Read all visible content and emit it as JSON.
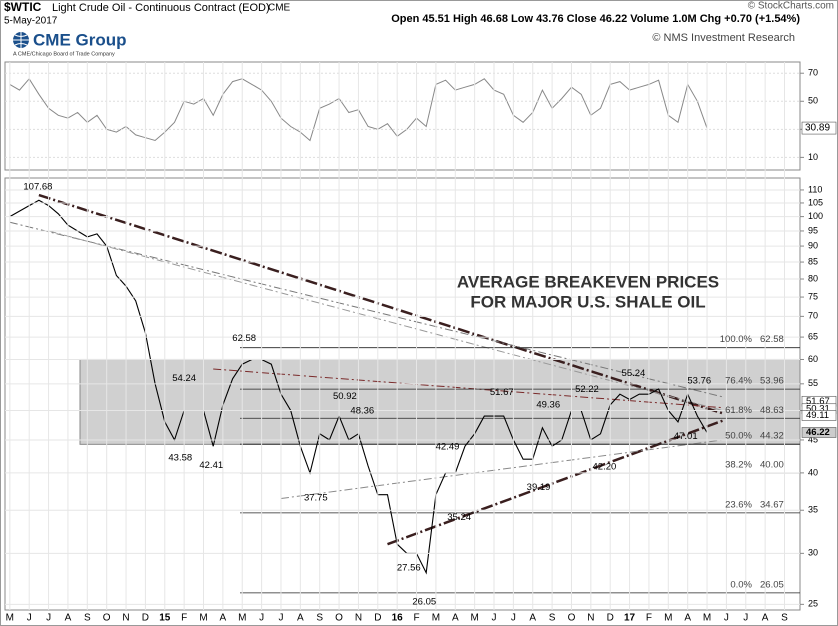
{
  "header": {
    "symbol": "$WTIC",
    "title": "Light Crude Oil - Continuous Contract (EOD)",
    "exchange": "CME",
    "date": "5-May-2017",
    "quote": "Open 45.51 High 46.68 Low 43.76 Close 46.22 Volume 1.0M Chg +0.70 (+1.54%)",
    "copyright": "© StockCharts.com",
    "logo": "CME Group",
    "logo_sub": "A CME/Chicago Board of Trade Company",
    "credit": "© NMS Investment Research"
  },
  "chart_data": [
    {
      "type": "line",
      "panel": "rsi",
      "color": "#888888",
      "x": [
        0,
        0.5,
        1,
        1.5,
        2,
        2.5,
        3,
        3.5,
        4,
        4.5,
        5,
        5.5,
        6,
        6.5,
        7,
        7.5,
        8,
        8.5,
        9,
        9.5,
        10,
        10.5,
        11,
        11.5,
        12,
        12.5,
        13,
        13.5,
        14,
        14.5,
        15,
        15.5,
        16,
        16.5,
        17,
        17.5,
        18,
        18.5,
        19,
        19.5,
        20,
        20.5,
        21,
        21.5,
        22,
        22.5,
        23,
        23.5,
        24,
        24.5,
        25,
        25.5,
        26,
        26.5,
        27,
        27.5,
        28,
        28.5,
        29,
        29.5,
        30,
        30.5,
        31,
        31.5,
        32,
        32.5,
        33,
        33.5,
        34,
        34.5,
        35,
        35.5,
        36
      ],
      "values": [
        62,
        58,
        66,
        55,
        45,
        40,
        38,
        42,
        35,
        40,
        30,
        28,
        32,
        26,
        24,
        22,
        28,
        35,
        50,
        48,
        52,
        40,
        55,
        64,
        66,
        62,
        58,
        50,
        38,
        32,
        28,
        22,
        45,
        48,
        52,
        42,
        44,
        32,
        30,
        34,
        25,
        30,
        38,
        32,
        62,
        65,
        58,
        60,
        62,
        66,
        58,
        55,
        40,
        35,
        42,
        58,
        45,
        52,
        60,
        55,
        40,
        45,
        62,
        64,
        58,
        60,
        62,
        65,
        40,
        35,
        62,
        50,
        30.89
      ],
      "last_label": "30.89",
      "xlim": [
        -0.25,
        40.8
      ],
      "ylim": [
        1,
        78
      ],
      "yticks": [
        10,
        30,
        50,
        70
      ]
    },
    {
      "type": "line",
      "panel": "price",
      "log_scale": true,
      "grid": true,
      "color": "#000000",
      "title": [
        "AVERAGE BREAKEVEN PRICES",
        "FOR MAJOR U.S. SHALE OIL"
      ],
      "x": [
        0,
        0.5,
        1,
        1.5,
        2,
        2.5,
        3,
        3.5,
        4,
        4.5,
        5,
        5.5,
        6,
        6.5,
        7,
        7.5,
        8,
        8.5,
        9,
        9.5,
        10,
        10.5,
        11,
        11.5,
        12,
        12.5,
        13,
        13.5,
        14,
        14.5,
        15,
        15.5,
        16,
        16.5,
        17,
        17.5,
        18,
        18.5,
        19,
        19.5,
        20,
        20.5,
        21,
        21.5,
        22,
        22.5,
        23,
        23.5,
        24,
        24.5,
        25,
        25.5,
        26,
        26.5,
        27,
        27.5,
        28,
        28.5,
        29,
        29.5,
        30,
        30.5,
        31,
        31.5,
        32,
        32.5,
        33,
        33.5,
        34,
        34.5,
        35,
        35.5,
        36
      ],
      "values": [
        100,
        102,
        104,
        106,
        104,
        101,
        97,
        95,
        93,
        94,
        90,
        81,
        78,
        74,
        66,
        55,
        48,
        45,
        50,
        50,
        50,
        44,
        51,
        56,
        59,
        60,
        60,
        59,
        53,
        50,
        44,
        40,
        46,
        45,
        49,
        45,
        46,
        41,
        37,
        37,
        31,
        30,
        30,
        28,
        37,
        40,
        40,
        44,
        46,
        49,
        49,
        49,
        45,
        42,
        42,
        47,
        44,
        45,
        50,
        50,
        45,
        46,
        51,
        53,
        52,
        53,
        53,
        54,
        50,
        48,
        53,
        49,
        46.22
      ],
      "xlim": [
        -0.25,
        40.8
      ],
      "ylim": [
        24.5,
        114.8
      ],
      "yticks": [
        25,
        30,
        35,
        40,
        45,
        50,
        55,
        60,
        65,
        70,
        75,
        80,
        85,
        90,
        95,
        100,
        105,
        110
      ],
      "xticks": [
        {
          "value": 0,
          "label": "M"
        },
        {
          "value": 1,
          "label": "J"
        },
        {
          "value": 2,
          "label": "J"
        },
        {
          "value": 3,
          "label": "A"
        },
        {
          "value": 4,
          "label": "S"
        },
        {
          "value": 5,
          "label": "O"
        },
        {
          "value": 6,
          "label": "N"
        },
        {
          "value": 7,
          "label": "D"
        },
        {
          "value": 8,
          "label": "15"
        },
        {
          "value": 9,
          "label": "F"
        },
        {
          "value": 10,
          "label": "M"
        },
        {
          "value": 11,
          "label": "A"
        },
        {
          "value": 12,
          "label": "M"
        },
        {
          "value": 13,
          "label": "J"
        },
        {
          "value": 14,
          "label": "J"
        },
        {
          "value": 15,
          "label": "A"
        },
        {
          "value": 16,
          "label": "S"
        },
        {
          "value": 17,
          "label": "O"
        },
        {
          "value": 18,
          "label": "N"
        },
        {
          "value": 19,
          "label": "D"
        },
        {
          "value": 20,
          "label": "16"
        },
        {
          "value": 21,
          "label": "F"
        },
        {
          "value": 22,
          "label": "M"
        },
        {
          "value": 23,
          "label": "A"
        },
        {
          "value": 24,
          "label": "M"
        },
        {
          "value": 25,
          "label": "J"
        },
        {
          "value": 26,
          "label": "J"
        },
        {
          "value": 27,
          "label": "A"
        },
        {
          "value": 28,
          "label": "S"
        },
        {
          "value": 29,
          "label": "O"
        },
        {
          "value": 30,
          "label": "N"
        },
        {
          "value": 31,
          "label": "D"
        },
        {
          "value": 32,
          "label": "17"
        },
        {
          "value": 33,
          "label": "F"
        },
        {
          "value": 34,
          "label": "M"
        },
        {
          "value": 35,
          "label": "A"
        },
        {
          "value": 36,
          "label": "M"
        },
        {
          "value": 37,
          "label": "J"
        },
        {
          "value": 38,
          "label": "J"
        },
        {
          "value": 39,
          "label": "A"
        },
        {
          "value": 40,
          "label": "S"
        }
      ],
      "band": [
        44.3,
        60
      ],
      "trendlines": [
        {
          "x": [
            1.5,
            36.8
          ],
          "y": [
            108,
            49.5
          ],
          "color": "#3a1f1f",
          "width": 2.5
        },
        {
          "x": [
            19.5,
            36.8
          ],
          "y": [
            31,
            48.2
          ],
          "color": "#3a1f1f",
          "width": 2.5
        },
        {
          "x": [
            0,
            36.8
          ],
          "y": [
            98,
            52.5
          ],
          "color": "#777777",
          "width": 1
        },
        {
          "x": [
            2,
            36.8
          ],
          "y": [
            95,
            50
          ],
          "color": "#999999",
          "width": 1
        },
        {
          "x": [
            10.5,
            36.8
          ],
          "y": [
            58,
            50.5
          ],
          "color": "#7a2a2a",
          "width": 1
        },
        {
          "x": [
            14,
            36.8
          ],
          "y": [
            36.5,
            45
          ],
          "color": "#888888",
          "width": 1
        }
      ],
      "fib_levels": [
        {
          "pct": "100.0%",
          "value": 62.58,
          "label": "62.58"
        },
        {
          "pct": "76.4%",
          "value": 53.96,
          "label": "53.96"
        },
        {
          "pct": "61.8%",
          "value": 48.63,
          "label": "48.63"
        },
        {
          "pct": "50.0%",
          "value": 44.32,
          "label": "44.32"
        },
        {
          "pct": "38.2%",
          "value": 40,
          "label": "40.00"
        },
        {
          "pct": "23.6%",
          "value": 34.67,
          "label": "34.67"
        },
        {
          "pct": "0.0%",
          "value": 26.05,
          "label": "26.05"
        }
      ],
      "annotations": [
        {
          "x": 1.45,
          "value": 107.68,
          "label": "107.68",
          "side": "above"
        },
        {
          "x": 12.1,
          "value": 62.58,
          "label": "62.58",
          "side": "above"
        },
        {
          "x": 9,
          "value": 54.24,
          "label": "54.24",
          "side": "above"
        },
        {
          "x": 8.8,
          "value": 43.58,
          "label": "43.58",
          "side": "below"
        },
        {
          "x": 10.4,
          "value": 42.41,
          "label": "42.41",
          "side": "below"
        },
        {
          "x": 17.3,
          "value": 50.92,
          "label": "50.92",
          "side": "above"
        },
        {
          "x": 18.2,
          "value": 48.36,
          "label": "48.36",
          "side": "above"
        },
        {
          "x": 15.8,
          "value": 37.75,
          "label": "37.75",
          "side": "below"
        },
        {
          "x": 22.6,
          "value": 42.49,
          "label": "42.49",
          "side": "above"
        },
        {
          "x": 23.2,
          "value": 35.24,
          "label": "35.24",
          "side": "below"
        },
        {
          "x": 20.6,
          "value": 27.56,
          "label": "27.56",
          "side": "above"
        },
        {
          "x": 21.4,
          "value": 26.05,
          "label": "26.05",
          "side": "below"
        },
        {
          "x": 25.4,
          "value": 51.67,
          "label": "51.67",
          "side": "above"
        },
        {
          "x": 27.8,
          "value": 49.36,
          "label": "49.36",
          "side": "above"
        },
        {
          "x": 27.3,
          "value": 39.19,
          "label": "39.19",
          "side": "below"
        },
        {
          "x": 29.8,
          "value": 52.22,
          "label": "52.22",
          "side": "above"
        },
        {
          "x": 30.7,
          "value": 42.2,
          "label": "42.20",
          "side": "below"
        },
        {
          "x": 32.2,
          "value": 55.24,
          "label": "55.24",
          "side": "above"
        },
        {
          "x": 35.6,
          "value": 53.76,
          "label": "53.76",
          "side": "above"
        },
        {
          "x": 34.9,
          "value": 47.01,
          "label": "47.01",
          "side": "below"
        }
      ],
      "last_values": [
        {
          "value": 51.67,
          "label": "51.67",
          "color": "#ffffff"
        },
        {
          "value": 50.31,
          "label": "50.31",
          "color": "#ffffff"
        },
        {
          "value": 49.11,
          "label": "49.11",
          "color": "#ffffff"
        },
        {
          "value": 46.22,
          "label": "46.22",
          "color": "#cccccc"
        }
      ]
    }
  ]
}
